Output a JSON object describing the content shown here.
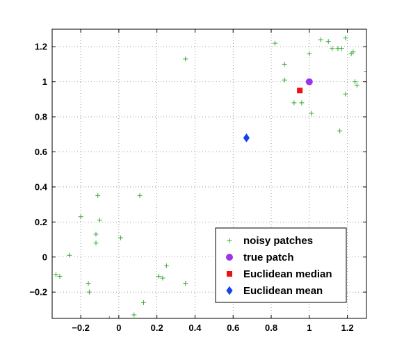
{
  "chart_data": {
    "type": "scatter",
    "xlim": [
      -0.35,
      1.3
    ],
    "ylim": [
      -0.35,
      1.3
    ],
    "xticks": [
      -0.2,
      0,
      0.2,
      0.4,
      0.6,
      0.8,
      1,
      1.2
    ],
    "yticks": [
      -0.2,
      0,
      0.2,
      0.4,
      0.6,
      0.8,
      1,
      1.2
    ],
    "xtick_labels": [
      "−0.2",
      "0",
      "0.2",
      "0.4",
      "0.6",
      "0.8",
      "1",
      "1.2"
    ],
    "ytick_labels": [
      "−0.2",
      "0",
      "0.2",
      "0.4",
      "0.6",
      "0.8",
      "1",
      "1.2"
    ],
    "grid": true,
    "legend_position": "bottom-right",
    "series": [
      {
        "name": "noisy patches",
        "marker": "plus",
        "color": "#33aa33",
        "points": [
          [
            -0.33,
            -0.1
          ],
          [
            -0.31,
            -0.11
          ],
          [
            -0.26,
            0.01
          ],
          [
            -0.2,
            0.23
          ],
          [
            -0.16,
            -0.15
          ],
          [
            -0.155,
            -0.2
          ],
          [
            -0.12,
            0.13
          ],
          [
            -0.12,
            0.08
          ],
          [
            -0.11,
            0.35
          ],
          [
            -0.1,
            0.21
          ],
          [
            -0.05,
            -0.35
          ],
          [
            0.01,
            0.11
          ],
          [
            0.08,
            -0.33
          ],
          [
            0.11,
            0.35
          ],
          [
            0.13,
            -0.26
          ],
          [
            0.21,
            -0.11
          ],
          [
            0.23,
            -0.12
          ],
          [
            0.25,
            -0.05
          ],
          [
            0.35,
            -0.15
          ],
          [
            0.35,
            1.13
          ],
          [
            0.82,
            1.22
          ],
          [
            0.87,
            1.01
          ],
          [
            0.87,
            1.1
          ],
          [
            0.92,
            0.88
          ],
          [
            0.96,
            0.88
          ],
          [
            1.0,
            1.16
          ],
          [
            1.01,
            0.82
          ],
          [
            1.06,
            1.24
          ],
          [
            1.1,
            1.23
          ],
          [
            1.12,
            1.19
          ],
          [
            1.15,
            1.19
          ],
          [
            1.16,
            0.72
          ],
          [
            1.17,
            1.19
          ],
          [
            1.19,
            1.25
          ],
          [
            1.19,
            0.93
          ],
          [
            1.22,
            1.16
          ],
          [
            1.23,
            1.17
          ],
          [
            1.24,
            1.0
          ],
          [
            1.25,
            0.98
          ],
          [
            1.3,
            1.06
          ]
        ]
      },
      {
        "name": "true patch",
        "marker": "circle",
        "color": "#9933ee",
        "points": [
          [
            1.0,
            1.0
          ]
        ]
      },
      {
        "name": "Euclidean median",
        "marker": "square",
        "color": "#ee1111",
        "points": [
          [
            0.95,
            0.95
          ]
        ]
      },
      {
        "name": "Euclidean mean",
        "marker": "diamond",
        "color": "#1144ee",
        "points": [
          [
            0.67,
            0.68
          ]
        ]
      }
    ]
  }
}
